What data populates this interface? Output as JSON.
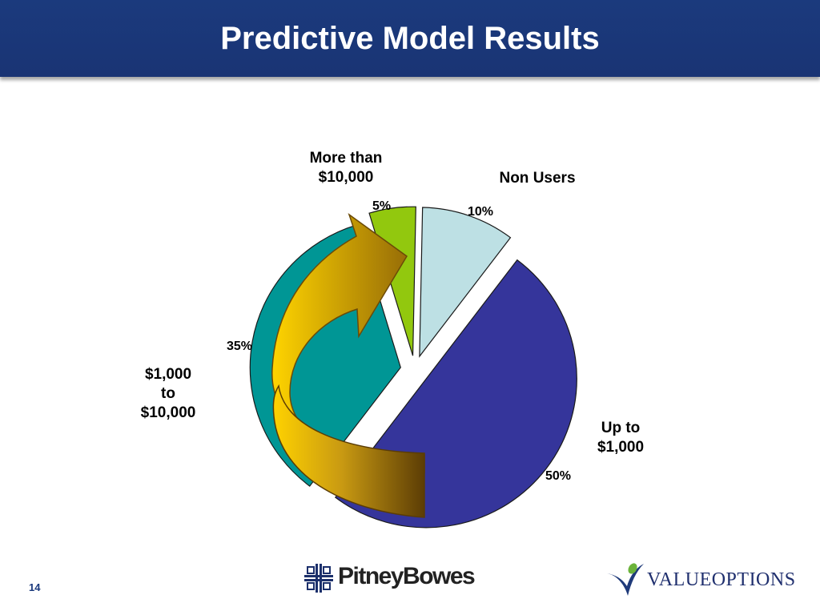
{
  "header": {
    "title": "Predictive Model Results"
  },
  "chart_data": {
    "type": "pie",
    "slices": [
      {
        "label": "Non Users",
        "value": 10,
        "display": "10%",
        "color": "#bde0e4"
      },
      {
        "label": "Up to\n$1,000",
        "value": 50,
        "display": "50%",
        "color": "#35359b"
      },
      {
        "label": "$1,000\nto\n$10,000",
        "value": 35,
        "display": "35%",
        "color": "#009695"
      },
      {
        "label": "More than\n$10,000",
        "value": 5,
        "display": "5%",
        "color": "#92c80e"
      }
    ],
    "annotation": "curved arrow from $1,000 to $10,000 segment to More than $10,000 segment"
  },
  "labels": {
    "more_than_line1": "More than",
    "more_than_line2": "$10,000",
    "non_users": "Non Users",
    "mid_line1": "$1,000",
    "mid_line2": "to",
    "mid_line3": "$10,000",
    "up_to_line1": "Up to",
    "up_to_line2": "$1,000"
  },
  "percents": {
    "five": "5%",
    "ten": "10%",
    "thirty_five": "35%",
    "fifty": "50%"
  },
  "footer": {
    "slide_number": "14",
    "logo_left": "PitneyBowes",
    "logo_right": "VALUEOPTIONS"
  }
}
